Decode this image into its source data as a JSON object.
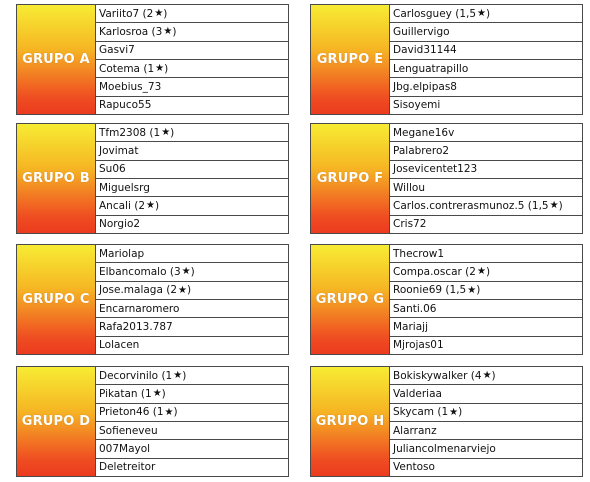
{
  "groups": [
    {
      "id": "a",
      "label": "GRUPO A",
      "players": [
        {
          "name": "Variito7",
          "stars": "2"
        },
        {
          "name": "Karlosroa",
          "stars": "3"
        },
        {
          "name": "Gasvi7",
          "stars": ""
        },
        {
          "name": "Cotema",
          "stars": "1"
        },
        {
          "name": "Moebius_73",
          "stars": ""
        },
        {
          "name": "Rapuco55",
          "stars": ""
        }
      ]
    },
    {
      "id": "e",
      "label": "GRUPO E",
      "players": [
        {
          "name": "Carlosguey",
          "stars": "1,5"
        },
        {
          "name": "Guillervigo",
          "stars": ""
        },
        {
          "name": "David31144",
          "stars": ""
        },
        {
          "name": "Lenguatrapillo",
          "stars": ""
        },
        {
          "name": "Jbg.elpipas8",
          "stars": ""
        },
        {
          "name": "Sisoyemi",
          "stars": ""
        }
      ]
    },
    {
      "id": "b",
      "label": "GRUPO B",
      "players": [
        {
          "name": "Tfm2308",
          "stars": "1"
        },
        {
          "name": "Jovimat",
          "stars": ""
        },
        {
          "name": "Su06",
          "stars": ""
        },
        {
          "name": "Miguelsrg",
          "stars": ""
        },
        {
          "name": "Ancali",
          "stars": "2"
        },
        {
          "name": "Norgio2",
          "stars": ""
        }
      ]
    },
    {
      "id": "f",
      "label": "GRUPO F",
      "players": [
        {
          "name": "Megane16v",
          "stars": ""
        },
        {
          "name": "Palabrero2",
          "stars": ""
        },
        {
          "name": "Josevicentet123",
          "stars": ""
        },
        {
          "name": "Willou",
          "stars": ""
        },
        {
          "name": "Carlos.contrerasmunoz.5",
          "stars": "1,5"
        },
        {
          "name": "Cris72",
          "stars": ""
        }
      ]
    },
    {
      "id": "c",
      "label": "GRUPO C",
      "players": [
        {
          "name": "Mariolap",
          "stars": ""
        },
        {
          "name": "Elbancomalo",
          "stars": "3"
        },
        {
          "name": "Jose.malaga",
          "stars": "2"
        },
        {
          "name": "Encarnaromero",
          "stars": ""
        },
        {
          "name": "Rafa2013.787",
          "stars": ""
        },
        {
          "name": "Lolacen",
          "stars": ""
        }
      ]
    },
    {
      "id": "g",
      "label": "GRUPO G",
      "players": [
        {
          "name": "Thecrow1",
          "stars": ""
        },
        {
          "name": "Compa.oscar",
          "stars": "2"
        },
        {
          "name": "Roonie69",
          "stars": "1,5"
        },
        {
          "name": "Santi.06",
          "stars": ""
        },
        {
          "name": "Mariajj",
          "stars": ""
        },
        {
          "name": "Mjrojas01",
          "stars": ""
        }
      ]
    },
    {
      "id": "d",
      "label": "GRUPO D",
      "players": [
        {
          "name": "Decorvinilo",
          "stars": "1"
        },
        {
          "name": "Pikatan",
          "stars": "1"
        },
        {
          "name": "Prieton46",
          "stars": "1"
        },
        {
          "name": "Sofieneveu",
          "stars": ""
        },
        {
          "name": "007Mayol",
          "stars": ""
        },
        {
          "name": "Deletreitor",
          "stars": ""
        }
      ]
    },
    {
      "id": "h",
      "label": "GRUPO H",
      "players": [
        {
          "name": "Bokiskywalker",
          "stars": "4"
        },
        {
          "name": "Valderiaa",
          "stars": ""
        },
        {
          "name": "Skycam",
          "stars": "1"
        },
        {
          "name": "Alarranz",
          "stars": ""
        },
        {
          "name": "Juliancolmenarviejo",
          "stars": ""
        },
        {
          "name": "Ventoso",
          "stars": ""
        }
      ]
    }
  ]
}
